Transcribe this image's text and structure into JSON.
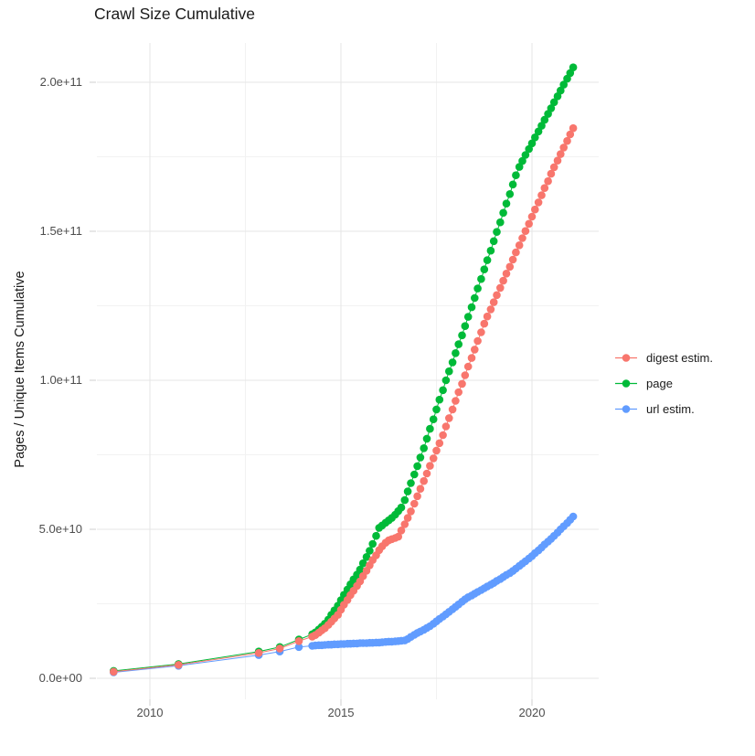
{
  "chart_data": {
    "type": "line",
    "subtype": "scatter-line (points with connecting lines, ggplot style)",
    "title": "Crawl Size Cumulative",
    "xlabel": "",
    "ylabel": "Pages / Unique Items Cumulative",
    "legend_position": "right",
    "grid": true,
    "background": "#FFFFFF",
    "grid_major_color": "#E5E5E5",
    "grid_minor_color": "#F2F2F2",
    "tick_mark_color": "#CFCFCF",
    "tick_text_color": "#4D4D4D",
    "xlim": [
      2008.7,
      2021.7
    ],
    "ylim_e10": [
      -0.8,
      21.3
    ],
    "x_ticks": [
      {
        "label": "2010",
        "year": 2010
      },
      {
        "label": "2015",
        "year": 2015
      },
      {
        "label": "2020",
        "year": 2020
      }
    ],
    "y_ticks": [
      {
        "label": "0.0e+00",
        "value_e10": 0
      },
      {
        "label": "5.0e+10",
        "value_e10": 5
      },
      {
        "label": "1.0e+11",
        "value_e10": 10
      },
      {
        "label": "1.5e+11",
        "value_e10": 15
      },
      {
        "label": "2.0e+11",
        "value_e10": 20
      }
    ],
    "y_unit": "items; plotted value = value_e10 x 1e10",
    "x_years": [
      2009.05,
      2010.75,
      2012.85,
      2013.4,
      2013.9,
      2014.25,
      2014.33,
      2014.42,
      2014.5,
      2014.58,
      2014.67,
      2014.75,
      2014.83,
      2014.92,
      2015,
      2015.08,
      2015.17,
      2015.25,
      2015.33,
      2015.42,
      2015.5,
      2015.58,
      2015.67,
      2015.75,
      2015.83,
      2015.92,
      2016,
      2016.08,
      2016.17,
      2016.25,
      2016.33,
      2016.42,
      2016.5,
      2016.58,
      2016.67,
      2016.75,
      2016.83,
      2016.92,
      2017,
      2017.08,
      2017.17,
      2017.25,
      2017.33,
      2017.42,
      2017.5,
      2017.58,
      2017.67,
      2017.75,
      2017.83,
      2017.92,
      2018,
      2018.08,
      2018.17,
      2018.25,
      2018.33,
      2018.42,
      2018.5,
      2018.58,
      2018.67,
      2018.75,
      2018.83,
      2018.92,
      2019,
      2019.08,
      2019.17,
      2019.25,
      2019.33,
      2019.42,
      2019.5,
      2019.58,
      2019.67,
      2019.75,
      2019.83,
      2019.92,
      2020,
      2020.08,
      2020.17,
      2020.25,
      2020.33,
      2020.42,
      2020.5,
      2020.58,
      2020.67,
      2020.75,
      2020.83,
      2020.92,
      2021,
      2021.08
    ],
    "series": [
      {
        "name": "digest estim.",
        "color": "#F8766D",
        "values_e10": [
          0.22,
          0.45,
          0.85,
          1.0,
          1.25,
          1.4,
          1.45,
          1.53,
          1.61,
          1.68,
          1.79,
          1.9,
          2.01,
          2.13,
          2.3,
          2.47,
          2.63,
          2.79,
          2.94,
          3.1,
          3.25,
          3.43,
          3.61,
          3.79,
          3.97,
          4.13,
          4.3,
          4.43,
          4.55,
          4.63,
          4.67,
          4.71,
          4.75,
          4.96,
          5.17,
          5.38,
          5.6,
          5.86,
          6.11,
          6.36,
          6.62,
          6.87,
          7.13,
          7.38,
          7.64,
          7.89,
          8.16,
          8.45,
          8.73,
          9.02,
          9.31,
          9.6,
          9.88,
          10.17,
          10.46,
          10.75,
          11.03,
          11.32,
          11.61,
          11.9,
          12.14,
          12.38,
          12.62,
          12.86,
          13.1,
          13.34,
          13.58,
          13.81,
          14.05,
          14.29,
          14.53,
          14.77,
          15.01,
          15.25,
          15.49,
          15.73,
          15.97,
          16.21,
          16.45,
          16.68,
          16.93,
          17.15,
          17.37,
          17.59,
          17.81,
          18.03,
          18.25,
          18.46
        ]
      },
      {
        "name": "page",
        "color": "#00BA38",
        "values_e10": [
          0.25,
          0.48,
          0.9,
          1.05,
          1.3,
          1.48,
          1.54,
          1.64,
          1.73,
          1.83,
          1.97,
          2.13,
          2.28,
          2.44,
          2.62,
          2.8,
          2.98,
          3.15,
          3.32,
          3.48,
          3.65,
          3.86,
          4.07,
          4.28,
          4.51,
          4.78,
          5.05,
          5.13,
          5.22,
          5.3,
          5.38,
          5.49,
          5.61,
          5.73,
          5.98,
          6.27,
          6.55,
          6.84,
          7.12,
          7.41,
          7.72,
          8.04,
          8.37,
          8.69,
          9.02,
          9.35,
          9.67,
          10.0,
          10.3,
          10.6,
          10.91,
          11.21,
          11.51,
          11.82,
          12.13,
          12.45,
          12.76,
          13.08,
          13.4,
          13.72,
          14.03,
          14.35,
          14.67,
          14.98,
          15.3,
          15.62,
          15.93,
          16.25,
          16.57,
          16.88,
          17.16,
          17.36,
          17.56,
          17.76,
          17.95,
          18.15,
          18.35,
          18.54,
          18.74,
          18.94,
          19.13,
          19.33,
          19.53,
          19.72,
          19.92,
          20.12,
          20.31,
          20.5
        ]
      },
      {
        "name": "url estim.",
        "color": "#619CFF",
        "values_e10": [
          0.2,
          0.42,
          0.78,
          0.9,
          1.05,
          1.09,
          1.1,
          1.11,
          1.11,
          1.12,
          1.13,
          1.13,
          1.14,
          1.14,
          1.15,
          1.15,
          1.16,
          1.16,
          1.17,
          1.17,
          1.18,
          1.18,
          1.18,
          1.19,
          1.19,
          1.2,
          1.2,
          1.21,
          1.22,
          1.23,
          1.23,
          1.24,
          1.25,
          1.26,
          1.27,
          1.32,
          1.39,
          1.46,
          1.52,
          1.57,
          1.63,
          1.69,
          1.75,
          1.83,
          1.91,
          1.99,
          2.07,
          2.15,
          2.23,
          2.32,
          2.4,
          2.48,
          2.57,
          2.65,
          2.72,
          2.78,
          2.84,
          2.9,
          2.96,
          3.02,
          3.08,
          3.14,
          3.2,
          3.27,
          3.33,
          3.4,
          3.47,
          3.53,
          3.6,
          3.68,
          3.77,
          3.85,
          3.93,
          4.02,
          4.1,
          4.2,
          4.29,
          4.39,
          4.49,
          4.59,
          4.68,
          4.78,
          4.89,
          5.0,
          5.1,
          5.21,
          5.32,
          5.43
        ]
      }
    ],
    "draw_order_series_indexes": [
      2,
      1,
      0
    ]
  }
}
